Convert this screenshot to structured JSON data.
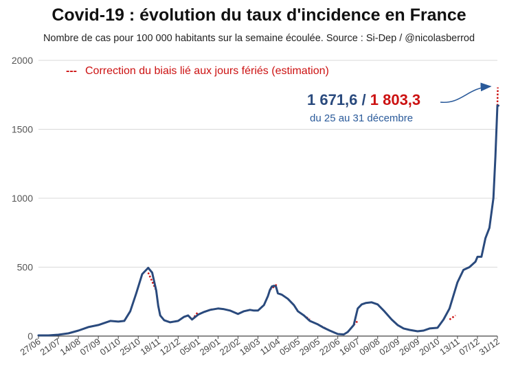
{
  "title": "Covid-19 : évolution du taux d'incidence en France",
  "subtitle": "Nombre de cas pour 100 000 habitants sur la semaine écoulée. Source : Si-Dep  / @nicolasberrod",
  "legend": {
    "marker": "---",
    "text": "Correction du biais lié aux jours fériés (estimation)"
  },
  "annotation": {
    "value_main": "1 671,6",
    "separator": " / ",
    "value_corrected": "1 803,3",
    "period": "du 25 au 31 décembre"
  },
  "colors": {
    "series": "#2a4a7d",
    "correction": "#cc1111",
    "grid": "#d9d9d9",
    "axis": "#444444",
    "arrow": "#2a5a9a"
  },
  "chart_data": {
    "type": "line",
    "title": "Covid-19 : évolution du taux d'incidence en France",
    "ylim": [
      0,
      2000
    ],
    "yticks": [
      0,
      500,
      1000,
      1500,
      2000
    ],
    "x_tick_labels": [
      "27/06",
      "21/07",
      "14/08",
      "07/09",
      "01/10",
      "25/10",
      "18/11",
      "12/12",
      "05/01",
      "29/01",
      "22/02",
      "18/03",
      "11/04",
      "05/05",
      "29/05",
      "22/06",
      "16/07",
      "09/08",
      "02/09",
      "26/09",
      "20/10",
      "13/11",
      "07/12",
      "31/12"
    ],
    "grid": true,
    "series": [
      {
        "x_tick_index": [
          0,
          0.5,
          1,
          1.5,
          2,
          2.5,
          3,
          3.3,
          3.6,
          4,
          4.3,
          4.6,
          4.9,
          5.2,
          5.5,
          5.7,
          5.9,
          6,
          6.1,
          6.3,
          6.6,
          7,
          7.3,
          7.5,
          7.7,
          8,
          8.3,
          8.6,
          9,
          9.3,
          9.6,
          10,
          10.3,
          10.6,
          10.8,
          11,
          11.3,
          11.5,
          11.6,
          11.7,
          11.75,
          11.8,
          11.9,
          12,
          12.2,
          12.5,
          12.8,
          13,
          13.3,
          13.6,
          14,
          14.3,
          14.6,
          15,
          15.3,
          15.5,
          15.8,
          16,
          16.2,
          16.4,
          16.7,
          17,
          17.3,
          17.7,
          18,
          18.3,
          18.6,
          19,
          19.3,
          19.6,
          20,
          20.3,
          20.6,
          21,
          21.3,
          21.6,
          21.9,
          22,
          22.2,
          22.4,
          22.6,
          22.8,
          22.9,
          23,
          23.05
        ],
        "values": [
          5,
          5,
          10,
          20,
          40,
          65,
          80,
          95,
          110,
          105,
          110,
          180,
          310,
          450,
          495,
          460,
          330,
          220,
          150,
          115,
          100,
          110,
          140,
          150,
          120,
          155,
          175,
          190,
          200,
          195,
          185,
          160,
          180,
          190,
          185,
          185,
          225,
          290,
          335,
          360,
          362,
          365,
          360,
          310,
          300,
          270,
          225,
          180,
          150,
          110,
          85,
          60,
          40,
          15,
          12,
          30,
          80,
          200,
          230,
          240,
          245,
          230,
          185,
          120,
          80,
          55,
          45,
          35,
          40,
          55,
          60,
          120,
          200,
          390,
          480,
          500,
          540,
          575,
          575,
          710,
          785,
          1000,
          1300,
          1671.6,
          1671.6
        ]
      }
    ],
    "corrections": [
      {
        "x_tick_index": [
          5.5,
          5.9
        ],
        "values": [
          460,
          330
        ]
      },
      {
        "x_tick_index": [
          7.7,
          8.0
        ],
        "values": [
          120,
          175
        ]
      },
      {
        "x_tick_index": [
          8.3,
          8.7
        ],
        "values": [
          175,
          195
        ]
      },
      {
        "x_tick_index": [
          11.6,
          11.95
        ],
        "values": [
          335,
          375
        ]
      },
      {
        "x_tick_index": [
          13.0,
          13.6
        ],
        "values": [
          180,
          120
        ]
      },
      {
        "x_tick_index": [
          14.0,
          14.4
        ],
        "values": [
          85,
          55
        ]
      },
      {
        "x_tick_index": [
          15.8,
          16.0
        ],
        "values": [
          80,
          110
        ]
      },
      {
        "x_tick_index": [
          20.6,
          20.9
        ],
        "values": [
          120,
          150
        ]
      },
      {
        "x_tick_index": [
          23.0,
          23.02
        ],
        "values": [
          1671.6,
          1803.3
        ]
      }
    ]
  }
}
